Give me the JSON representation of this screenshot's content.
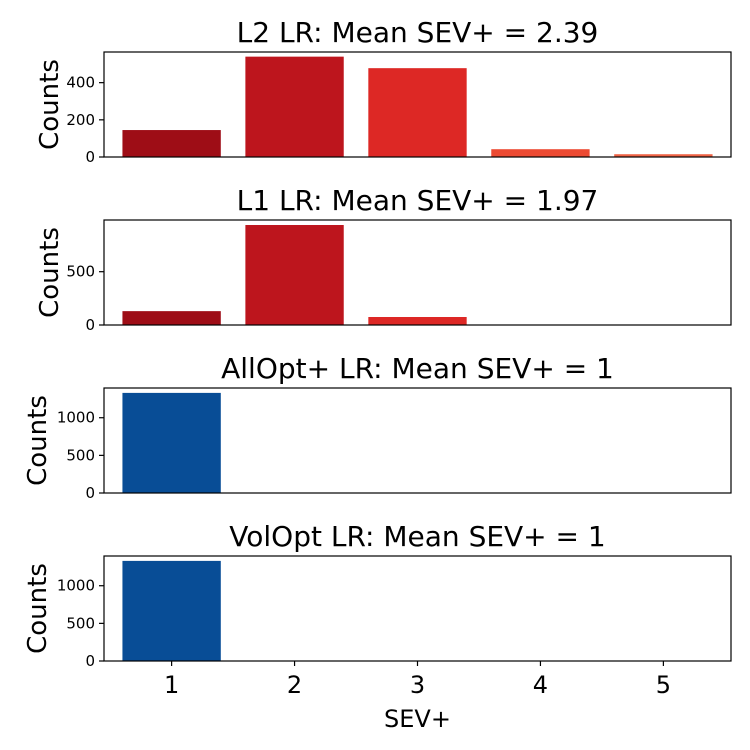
{
  "chart_data": [
    {
      "type": "bar",
      "title": "L2 LR: Mean SEV+ = 2.39",
      "ylabel": "Counts",
      "xlabel": "",
      "categories": [
        "1",
        "2",
        "3",
        "4",
        "5"
      ],
      "values": [
        145,
        540,
        478,
        42,
        15
      ],
      "colors": [
        "#9e0d16",
        "#bd151d",
        "#dd2825",
        "#ec4a32",
        "#f06446"
      ],
      "yticks": [
        0,
        200,
        400
      ],
      "ylim": [
        0,
        565
      ]
    },
    {
      "type": "bar",
      "title": "L1 LR: Mean SEV+ = 1.97",
      "ylabel": "Counts",
      "xlabel": "",
      "categories": [
        "1",
        "2",
        "3",
        "4",
        "5"
      ],
      "values": [
        130,
        938,
        75,
        0,
        0
      ],
      "colors": [
        "#9e0d16",
        "#bd151d",
        "#dd2825",
        "#ec4a32",
        "#f06446"
      ],
      "yticks": [
        0,
        500
      ],
      "ylim": [
        0,
        985
      ]
    },
    {
      "type": "bar",
      "title": "AllOpt+ LR: Mean SEV+ = 1",
      "ylabel": "Counts",
      "xlabel": "",
      "categories": [
        "1",
        "2",
        "3",
        "4",
        "5"
      ],
      "values": [
        1330,
        0,
        0,
        0,
        0
      ],
      "colors": [
        "#084d96",
        "#084d96",
        "#084d96",
        "#084d96",
        "#084d96"
      ],
      "yticks": [
        0,
        500,
        1000
      ],
      "ylim": [
        0,
        1395
      ]
    },
    {
      "type": "bar",
      "title": "VolOpt LR: Mean SEV+ = 1",
      "ylabel": "Counts",
      "xlabel": "SEV+",
      "categories": [
        "1",
        "2",
        "3",
        "4",
        "5"
      ],
      "values": [
        1330,
        0,
        0,
        0,
        0
      ],
      "colors": [
        "#084d96",
        "#084d96",
        "#084d96",
        "#084d96",
        "#084d96"
      ],
      "yticks": [
        0,
        500,
        1000
      ],
      "ylim": [
        0,
        1395
      ],
      "xticks": [
        "1",
        "2",
        "3",
        "4",
        "5"
      ]
    }
  ]
}
